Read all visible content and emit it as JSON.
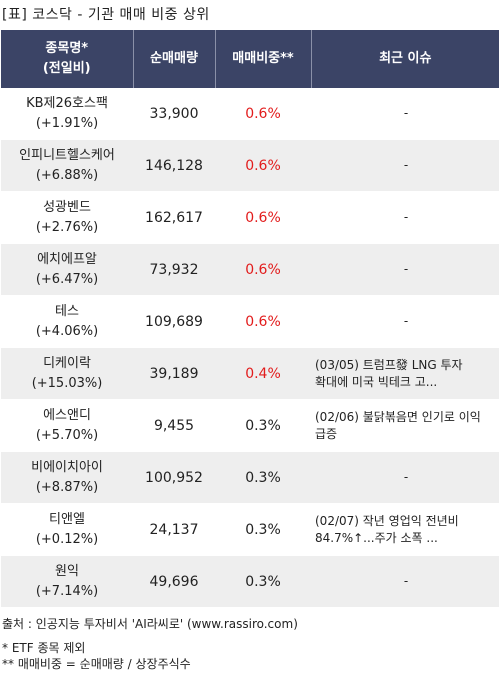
{
  "title": "[표] 코스닥 - 기관 매매 비중 상위",
  "headers": {
    "name_line1": "종목명*",
    "name_line2": "(전일비)",
    "volume": "순매매량",
    "ratio": "매매비중**",
    "issue": "최근 이슈"
  },
  "rows": [
    {
      "name": "KB제26호스팩",
      "change": "(+1.91%)",
      "volume": "33,900",
      "ratio": "0.6%",
      "issue": "-"
    },
    {
      "name": "인피니트헬스케어",
      "change": "(+6.88%)",
      "volume": "146,128",
      "ratio": "0.6%",
      "issue": "-"
    },
    {
      "name": "성광벤드",
      "change": "(+2.76%)",
      "volume": "162,617",
      "ratio": "0.6%",
      "issue": "-"
    },
    {
      "name": "에치에프알",
      "change": "(+6.47%)",
      "volume": "73,932",
      "ratio": "0.6%",
      "issue": "-"
    },
    {
      "name": "테스",
      "change": "(+4.06%)",
      "volume": "109,689",
      "ratio": "0.6%",
      "issue": "-"
    },
    {
      "name": "디케이락",
      "change": "(+15.03%)",
      "volume": "39,189",
      "ratio": "0.4%",
      "issue": "(03/05) 트럼프發 LNG 투자 확대에 미국 빅테크 고..."
    },
    {
      "name": "에스앤디",
      "change": "(+5.70%)",
      "volume": "9,455",
      "ratio": "0.3%",
      "issue": "(02/06) 불닭볶음면 인기로 이익 급증"
    },
    {
      "name": "비에이치아이",
      "change": "(+8.87%)",
      "volume": "100,952",
      "ratio": "0.3%",
      "issue": "-"
    },
    {
      "name": "티앤엘",
      "change": "(+0.12%)",
      "volume": "24,137",
      "ratio": "0.3%",
      "issue": "(02/07) 작년 영업익 전년비 84.7%↑...주가 소폭 ..."
    },
    {
      "name": "원익",
      "change": "(+7.14%)",
      "volume": "49,696",
      "ratio": "0.3%",
      "issue": "-"
    }
  ],
  "notes": {
    "source": "출처 : 인공지능 투자비서 'AI라씨로' (www.rassiro.com)",
    "note1": "* ETF 종목 제외",
    "note2": "** 매매비중 = 순매매량 / 상장주식수"
  },
  "colors": {
    "header_bg": "#3b4466",
    "ratio_red": "#e21c1c",
    "row_alt": "#eeeeee"
  }
}
